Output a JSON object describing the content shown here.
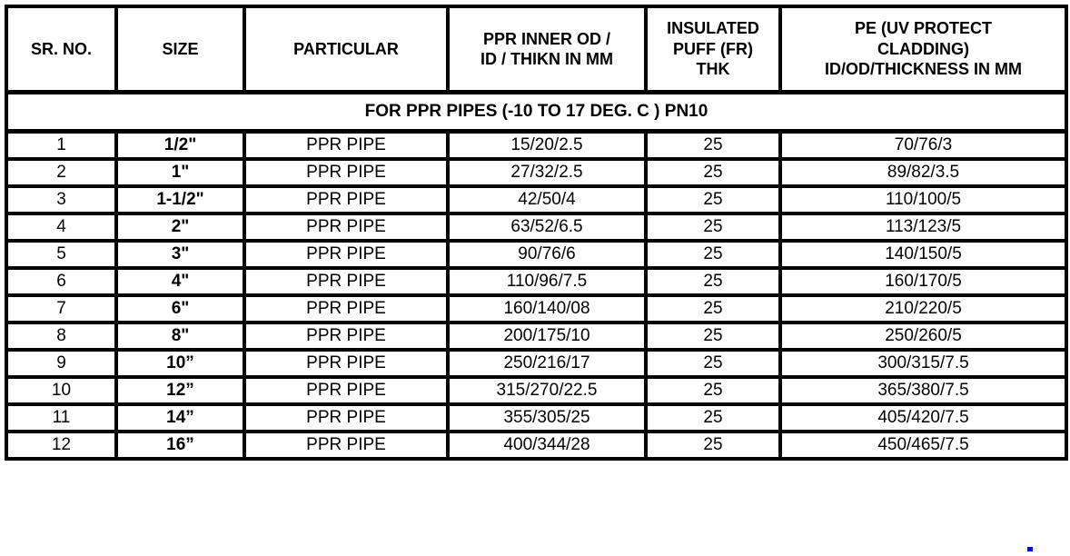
{
  "page": {
    "background": "#ffffff"
  },
  "colors": {
    "border": "#000000",
    "text": "#000000",
    "artifact_dot": "#0008ff"
  },
  "table": {
    "columns": [
      "SR. NO.",
      "SIZE",
      "PARTICULAR",
      "PPR INNER OD /\nID / THIKN IN MM",
      "INSULATED\nPUFF (FR)\nTHK",
      "PE (UV PROTECT\nCLADDING)\nID/OD/THICKNESS IN MM"
    ],
    "section_title": "FOR PPR PIPES (-10 TO 17 DEG. C ) PN10",
    "rows": [
      [
        "1",
        "1/2\"",
        "PPR PIPE",
        "15/20/2.5",
        "25",
        "70/76/3"
      ],
      [
        "2",
        "1\"",
        "PPR PIPE",
        "27/32/2.5",
        "25",
        "89/82/3.5"
      ],
      [
        "3",
        "1-1/2\"",
        "PPR PIPE",
        "42/50/4",
        "25",
        "110/100/5"
      ],
      [
        "4",
        "2\"",
        "PPR PIPE",
        "63/52/6.5",
        "25",
        "113/123/5"
      ],
      [
        "5",
        "3\"",
        "PPR PIPE",
        "90/76/6",
        "25",
        "140/150/5"
      ],
      [
        "6",
        "4\"",
        "PPR PIPE",
        "110/96/7.5",
        "25",
        "160/170/5"
      ],
      [
        "7",
        "6\"",
        "PPR PIPE",
        "160/140/08",
        "25",
        "210/220/5"
      ],
      [
        "8",
        "8\"",
        "PPR PIPE",
        "200/175/10",
        "25",
        "250/260/5"
      ],
      [
        "9",
        "10”",
        "PPR PIPE",
        "250/216/17",
        "25",
        "300/315/7.5"
      ],
      [
        "10",
        "12”",
        "PPR PIPE",
        "315/270/22.5",
        "25",
        "365/380/7.5"
      ],
      [
        "11",
        "14”",
        "PPR PIPE",
        "355/305/25",
        "25",
        "405/420/7.5"
      ],
      [
        "12",
        "16”",
        "PPR PIPE",
        "400/344/28",
        "25",
        "450/465/7.5"
      ]
    ]
  }
}
